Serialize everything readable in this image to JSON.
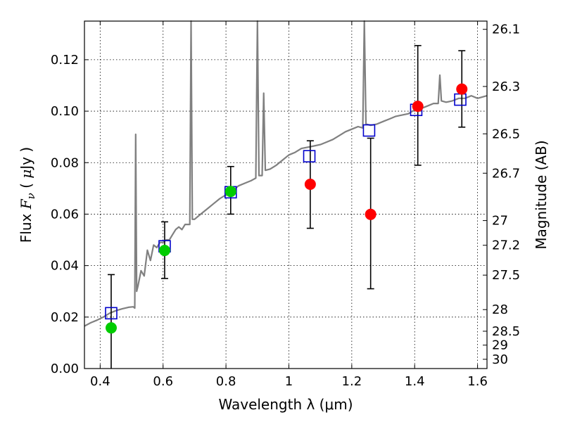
{
  "chart_data": {
    "type": "scatter",
    "xlabel": "Wavelength  λ (μm)",
    "ylabel": "Flux  F_ν  ( μJy )",
    "ylabel_parts": [
      "Flux ",
      "F",
      "ν",
      "  ( ",
      "μ",
      "Jy )"
    ],
    "y2label": "Magnitude (AB)",
    "xlim": [
      0.35,
      1.63
    ],
    "ylim": [
      0.0,
      0.135
    ],
    "grid": true,
    "x_ticks": [
      0.4,
      0.6,
      0.8,
      1.0,
      1.2,
      1.4,
      1.6
    ],
    "x_tick_labels": [
      "0.4",
      "0.6",
      "0.8",
      "1",
      "1.2",
      "1.4",
      "1.6"
    ],
    "y_ticks": [
      0.0,
      0.02,
      0.04,
      0.06,
      0.08,
      0.1,
      0.12
    ],
    "y_tick_labels": [
      "0.00",
      "0.02",
      "0.04",
      "0.06",
      "0.08",
      "0.10",
      "0.12"
    ],
    "magnitude_ticks": [
      {
        "label": "26.1",
        "flux": 0.1318
      },
      {
        "label": "26.3",
        "flux": 0.1096
      },
      {
        "label": "26.5",
        "flux": 0.0912
      },
      {
        "label": "26.7",
        "flux": 0.0759
      },
      {
        "label": "27",
        "flux": 0.0575
      },
      {
        "label": "27.2",
        "flux": 0.0479
      },
      {
        "label": "27.5",
        "flux": 0.0363
      },
      {
        "label": "28",
        "flux": 0.0229
      },
      {
        "label": "28.5",
        "flux": 0.0145
      },
      {
        "label": "29",
        "flux": 0.0091
      },
      {
        "label": "30",
        "flux": 0.0036
      }
    ],
    "series": [
      {
        "name": "",
        "kind": "spectrum-line",
        "color": "#808080",
        "points": [
          [
            0.35,
            0.0165
          ],
          [
            0.37,
            0.0178
          ],
          [
            0.39,
            0.0188
          ],
          [
            0.41,
            0.02
          ],
          [
            0.43,
            0.0215
          ],
          [
            0.45,
            0.0225
          ],
          [
            0.47,
            0.0232
          ],
          [
            0.49,
            0.0238
          ],
          [
            0.505,
            0.024
          ],
          [
            0.51,
            0.0235
          ],
          [
            0.513,
            0.091
          ],
          [
            0.516,
            0.03
          ],
          [
            0.52,
            0.032
          ],
          [
            0.53,
            0.038
          ],
          [
            0.54,
            0.036
          ],
          [
            0.55,
            0.046
          ],
          [
            0.56,
            0.042
          ],
          [
            0.57,
            0.048
          ],
          [
            0.58,
            0.047
          ],
          [
            0.59,
            0.049
          ],
          [
            0.6,
            0.049
          ],
          [
            0.61,
            0.05
          ],
          [
            0.62,
            0.05
          ],
          [
            0.63,
            0.052
          ],
          [
            0.64,
            0.054
          ],
          [
            0.65,
            0.055
          ],
          [
            0.66,
            0.054
          ],
          [
            0.67,
            0.056
          ],
          [
            0.685,
            0.056
          ],
          [
            0.689,
            0.135
          ],
          [
            0.693,
            0.058
          ],
          [
            0.7,
            0.058
          ],
          [
            0.72,
            0.06
          ],
          [
            0.74,
            0.062
          ],
          [
            0.76,
            0.064
          ],
          [
            0.78,
            0.066
          ],
          [
            0.8,
            0.0675
          ],
          [
            0.82,
            0.069
          ],
          [
            0.84,
            0.071
          ],
          [
            0.86,
            0.072
          ],
          [
            0.88,
            0.073
          ],
          [
            0.895,
            0.074
          ],
          [
            0.9,
            0.135
          ],
          [
            0.905,
            0.075
          ],
          [
            0.915,
            0.075
          ],
          [
            0.92,
            0.107
          ],
          [
            0.925,
            0.077
          ],
          [
            0.94,
            0.0775
          ],
          [
            0.96,
            0.079
          ],
          [
            0.98,
            0.081
          ],
          [
            1.0,
            0.083
          ],
          [
            1.02,
            0.084
          ],
          [
            1.04,
            0.0855
          ],
          [
            1.06,
            0.086
          ],
          [
            1.08,
            0.0865
          ],
          [
            1.1,
            0.087
          ],
          [
            1.12,
            0.088
          ],
          [
            1.14,
            0.089
          ],
          [
            1.16,
            0.0905
          ],
          [
            1.18,
            0.092
          ],
          [
            1.2,
            0.093
          ],
          [
            1.22,
            0.094
          ],
          [
            1.235,
            0.0935
          ],
          [
            1.24,
            0.135
          ],
          [
            1.245,
            0.095
          ],
          [
            1.26,
            0.0945
          ],
          [
            1.28,
            0.095
          ],
          [
            1.3,
            0.096
          ],
          [
            1.32,
            0.097
          ],
          [
            1.34,
            0.098
          ],
          [
            1.36,
            0.0985
          ],
          [
            1.38,
            0.099
          ],
          [
            1.4,
            0.1005
          ],
          [
            1.42,
            0.101
          ],
          [
            1.44,
            0.102
          ],
          [
            1.46,
            0.103
          ],
          [
            1.475,
            0.103
          ],
          [
            1.48,
            0.114
          ],
          [
            1.485,
            0.104
          ],
          [
            1.5,
            0.1035
          ],
          [
            1.52,
            0.104
          ],
          [
            1.54,
            0.105
          ],
          [
            1.56,
            0.105
          ],
          [
            1.58,
            0.106
          ],
          [
            1.6,
            0.105
          ],
          [
            1.63,
            0.106
          ]
        ]
      },
      {
        "name": "",
        "kind": "open-square",
        "color": "#0000cc",
        "x": [
          0.435,
          0.605,
          0.815,
          1.065,
          1.255,
          1.405,
          1.545
        ],
        "y": [
          0.0215,
          0.0475,
          0.0685,
          0.0825,
          0.0925,
          0.1005,
          0.1045
        ]
      },
      {
        "name": "",
        "kind": "filled-circle",
        "color": "#00cc00",
        "x": [
          0.435,
          0.605,
          0.815
        ],
        "y": [
          0.0158,
          0.0459,
          0.0688
        ],
        "yerr_low": [
          0.0,
          0.035,
          0.06
        ],
        "yerr_high": [
          0.0365,
          0.057,
          0.0785
        ]
      },
      {
        "name": "",
        "kind": "filled-circle",
        "color": "#ff0000",
        "x": [
          1.068,
          1.26,
          1.41,
          1.55
        ],
        "y": [
          0.0716,
          0.0599,
          0.1019,
          0.1086
        ],
        "yerr_low": [
          0.0545,
          0.031,
          0.079,
          0.0938
        ],
        "yerr_high": [
          0.0885,
          0.0895,
          0.1255,
          0.1235
        ]
      }
    ]
  }
}
